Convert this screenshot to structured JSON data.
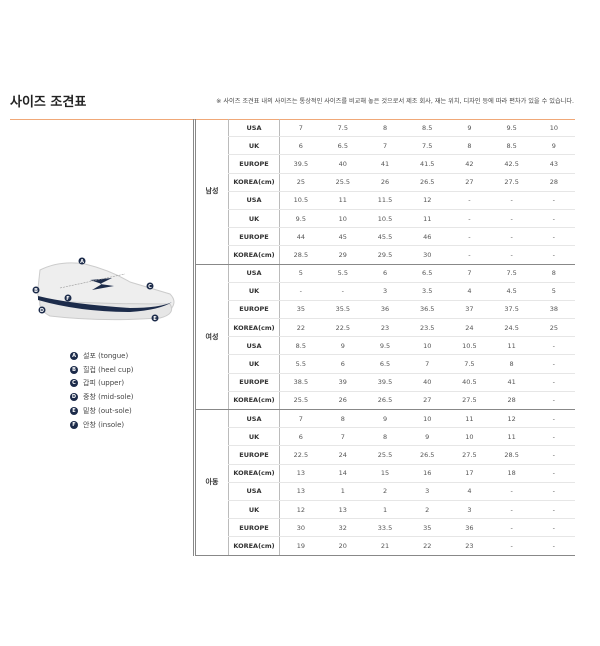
{
  "title": "사이즈 조견표",
  "note": "※ 사이즈 조견표 내의 사이즈는 통상적인 사이즈를 비교해 놓은 것으로서 제조 회사, 재는 위치, 디자인 등에 따라 편차가 있을 수 있습니다.",
  "legend": [
    {
      "letter": "A",
      "label": "설포 (tongue)"
    },
    {
      "letter": "B",
      "label": "힐컵 (heel cup)"
    },
    {
      "letter": "C",
      "label": "갑피 (upper)"
    },
    {
      "letter": "D",
      "label": "중창 (mid-sole)"
    },
    {
      "letter": "E",
      "label": "밑창 (out-sole)"
    },
    {
      "letter": "F",
      "label": "안창 (insole)"
    }
  ],
  "groups": [
    {
      "name": "남성",
      "rows": [
        {
          "label": "USA",
          "values": [
            "7",
            "7.5",
            "8",
            "8.5",
            "9",
            "9.5",
            "10"
          ]
        },
        {
          "label": "UK",
          "values": [
            "6",
            "6.5",
            "7",
            "7.5",
            "8",
            "8.5",
            "9"
          ]
        },
        {
          "label": "EUROPE",
          "values": [
            "39.5",
            "40",
            "41",
            "41.5",
            "42",
            "42.5",
            "43"
          ]
        },
        {
          "label": "KOREA(cm)",
          "values": [
            "25",
            "25.5",
            "26",
            "26.5",
            "27",
            "27.5",
            "28"
          ]
        },
        {
          "label": "USA",
          "values": [
            "10.5",
            "11",
            "11.5",
            "12",
            "-",
            "-",
            "-"
          ]
        },
        {
          "label": "UK",
          "values": [
            "9.5",
            "10",
            "10.5",
            "11",
            "-",
            "-",
            "-"
          ]
        },
        {
          "label": "EUROPE",
          "values": [
            "44",
            "45",
            "45.5",
            "46",
            "-",
            "-",
            "-"
          ]
        },
        {
          "label": "KOREA(cm)",
          "values": [
            "28.5",
            "29",
            "29.5",
            "30",
            "-",
            "-",
            "-"
          ]
        }
      ]
    },
    {
      "name": "여성",
      "rows": [
        {
          "label": "USA",
          "values": [
            "5",
            "5.5",
            "6",
            "6.5",
            "7",
            "7.5",
            "8"
          ]
        },
        {
          "label": "UK",
          "values": [
            "-",
            "-",
            "3",
            "3.5",
            "4",
            "4.5",
            "5"
          ]
        },
        {
          "label": "EUROPE",
          "values": [
            "35",
            "35.5",
            "36",
            "36.5",
            "37",
            "37.5",
            "38"
          ]
        },
        {
          "label": "KOREA(cm)",
          "values": [
            "22",
            "22.5",
            "23",
            "23.5",
            "24",
            "24.5",
            "25"
          ]
        },
        {
          "label": "USA",
          "values": [
            "8.5",
            "9",
            "9.5",
            "10",
            "10.5",
            "11",
            "-"
          ]
        },
        {
          "label": "UK",
          "values": [
            "5.5",
            "6",
            "6.5",
            "7",
            "7.5",
            "8",
            "-"
          ]
        },
        {
          "label": "EUROPE",
          "values": [
            "38.5",
            "39",
            "39.5",
            "40",
            "40.5",
            "41",
            "-"
          ]
        },
        {
          "label": "KOREA(cm)",
          "values": [
            "25.5",
            "26",
            "26.5",
            "27",
            "27.5",
            "28",
            "-"
          ]
        }
      ]
    },
    {
      "name": "아동",
      "rows": [
        {
          "label": "USA",
          "values": [
            "7",
            "8",
            "9",
            "10",
            "11",
            "12",
            "-"
          ]
        },
        {
          "label": "UK",
          "values": [
            "6",
            "7",
            "8",
            "9",
            "10",
            "11",
            "-"
          ]
        },
        {
          "label": "EUROPE",
          "values": [
            "22.5",
            "24",
            "25.5",
            "26.5",
            "27.5",
            "28.5",
            "-"
          ]
        },
        {
          "label": "KOREA(cm)",
          "values": [
            "13",
            "14",
            "15",
            "16",
            "17",
            "18",
            "-"
          ]
        },
        {
          "label": "USA",
          "values": [
            "13",
            "1",
            "2",
            "3",
            "4",
            "-",
            "-"
          ]
        },
        {
          "label": "UK",
          "values": [
            "12",
            "13",
            "1",
            "2",
            "3",
            "-",
            "-"
          ]
        },
        {
          "label": "EUROPE",
          "values": [
            "30",
            "32",
            "33.5",
            "35",
            "36",
            "-",
            "-"
          ]
        },
        {
          "label": "KOREA(cm)",
          "values": [
            "19",
            "20",
            "21",
            "22",
            "23",
            "-",
            "-"
          ]
        }
      ]
    }
  ]
}
